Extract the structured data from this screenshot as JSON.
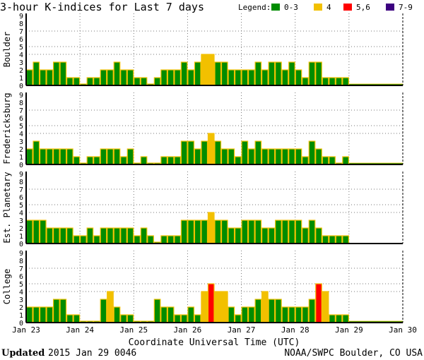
{
  "chart_data": [
    {
      "type": "bar",
      "title": "3-hour K-indices for Last 7 days",
      "ylabel": "Boulder",
      "ylim": [
        0,
        9
      ],
      "values": [
        2,
        3,
        2,
        2,
        3,
        3,
        1,
        1,
        0,
        1,
        1,
        2,
        2,
        3,
        2,
        2,
        1,
        1,
        0,
        1,
        2,
        2,
        2,
        3,
        2,
        3,
        4,
        4,
        3,
        3,
        2,
        2,
        2,
        2,
        3,
        2,
        3,
        3,
        2,
        3,
        2,
        1,
        3,
        3,
        1,
        1,
        1,
        1
      ]
    },
    {
      "type": "bar",
      "ylabel": "Fredericksburg",
      "ylim": [
        0,
        9
      ],
      "values": [
        2,
        3,
        2,
        2,
        2,
        2,
        2,
        1,
        0,
        1,
        1,
        2,
        2,
        2,
        1,
        2,
        0,
        1,
        0,
        0,
        1,
        1,
        1,
        3,
        3,
        2,
        3,
        4,
        3,
        2,
        2,
        1,
        3,
        2,
        3,
        2,
        2,
        2,
        2,
        2,
        2,
        1,
        3,
        2,
        1,
        1,
        0,
        1
      ]
    },
    {
      "type": "bar",
      "ylabel": "Est. Planetary",
      "ylim": [
        0,
        9
      ],
      "values": [
        3,
        3,
        3,
        2,
        2,
        2,
        2,
        1,
        1,
        2,
        1,
        2,
        2,
        2,
        2,
        2,
        1,
        2,
        1,
        0,
        1,
        1,
        1,
        3,
        3,
        3,
        3,
        4,
        3,
        3,
        2,
        2,
        3,
        3,
        3,
        2,
        2,
        3,
        3,
        3,
        3,
        2,
        3,
        2,
        1,
        1,
        1,
        1
      ]
    },
    {
      "type": "bar",
      "ylabel": "College",
      "ylim": [
        0,
        9
      ],
      "values": [
        2,
        2,
        2,
        2,
        3,
        3,
        1,
        1,
        0,
        0,
        0,
        3,
        4,
        2,
        1,
        1,
        0,
        0,
        0,
        3,
        2,
        2,
        1,
        1,
        2,
        1,
        4,
        5,
        4,
        4,
        2,
        1,
        2,
        2,
        3,
        4,
        3,
        3,
        2,
        2,
        2,
        2,
        3,
        5,
        4,
        1,
        1,
        1
      ]
    }
  ],
  "shared": {
    "xlabel": "Coordinate Universal Time (UTC)",
    "x_tick_labels": [
      "Jan 23",
      "Jan 24",
      "Jan 25",
      "Jan 26",
      "Jan 27",
      "Jan 28",
      "Jan 29",
      "Jan 30"
    ],
    "y_tick_labels": [
      "0",
      "1",
      "2",
      "3",
      "4",
      "5",
      "6",
      "7",
      "8",
      "9"
    ],
    "bars_per_day": 8,
    "gridlines_y": [
      4,
      5,
      7
    ],
    "grid_x": "dotted at day boundaries"
  },
  "legend": {
    "label": "Legend:",
    "placement": "top-right",
    "items": [
      {
        "label": "0-3",
        "color": "#008c00"
      },
      {
        "label": "4",
        "color": "#f2c000"
      },
      {
        "label": "5,6",
        "color": "#ff0000"
      },
      {
        "label": "7-9",
        "color": "#3c0080"
      }
    ]
  },
  "colors": {
    "bar_outline": "#f2c000"
  },
  "footer": {
    "updated_label": "Updated",
    "updated_value": "2015 Jan 29 0046",
    "source": "NOAA/SWPC Boulder, CO USA"
  }
}
